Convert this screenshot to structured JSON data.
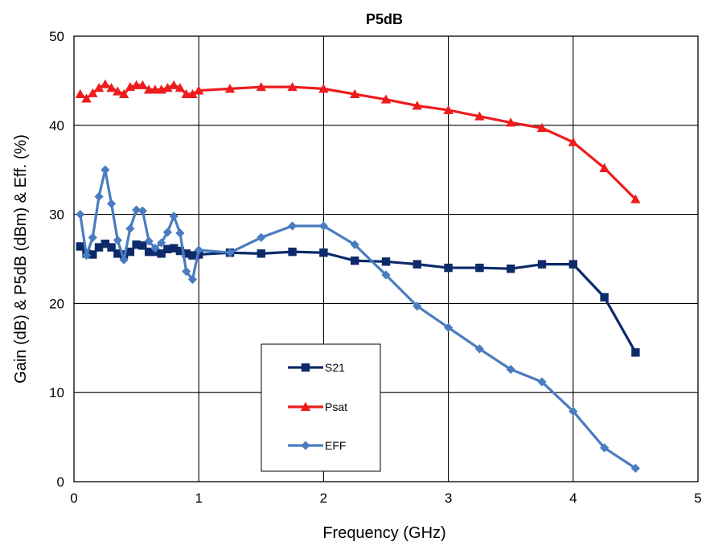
{
  "chart_data": {
    "type": "line",
    "title": "P5dB",
    "xlabel": "Frequency (GHz)",
    "ylabel": "Gain (dB) & P5dB (dBm) & Eff. (%)",
    "xlim": [
      0,
      5
    ],
    "ylim": [
      0,
      50
    ],
    "xticks": [
      0,
      1,
      2,
      3,
      4,
      5
    ],
    "yticks": [
      0,
      10,
      20,
      30,
      40,
      50
    ],
    "grid": true,
    "legend_position": "bottom-center",
    "series": [
      {
        "name": "S21",
        "color": "#0d2a6b",
        "marker": "square",
        "x": [
          0.05,
          0.1,
          0.15,
          0.2,
          0.25,
          0.3,
          0.35,
          0.4,
          0.45,
          0.5,
          0.55,
          0.6,
          0.65,
          0.7,
          0.75,
          0.8,
          0.85,
          0.9,
          0.95,
          1.0,
          1.25,
          1.5,
          1.75,
          2.0,
          2.25,
          2.5,
          2.75,
          3.0,
          3.25,
          3.5,
          3.75,
          4.0,
          4.25,
          4.5
        ],
        "y": [
          26.4,
          25.6,
          25.5,
          26.3,
          26.7,
          26.3,
          25.6,
          25.5,
          25.8,
          26.6,
          26.5,
          25.8,
          25.8,
          25.6,
          26.1,
          26.2,
          25.9,
          25.6,
          25.4,
          25.5,
          25.7,
          25.6,
          25.8,
          25.7,
          24.8,
          24.7,
          24.4,
          24.0,
          24.0,
          23.9,
          24.4,
          24.4,
          20.7,
          14.5
        ]
      },
      {
        "name": "Psat",
        "color": "#ee1c1c",
        "marker": "triangle",
        "x": [
          0.05,
          0.1,
          0.15,
          0.2,
          0.25,
          0.3,
          0.35,
          0.4,
          0.45,
          0.5,
          0.55,
          0.6,
          0.65,
          0.7,
          0.75,
          0.8,
          0.85,
          0.9,
          0.95,
          1.0,
          1.25,
          1.5,
          1.75,
          2.0,
          2.25,
          2.5,
          2.75,
          3.0,
          3.25,
          3.5,
          3.75,
          4.0,
          4.25,
          4.5
        ],
        "y": [
          43.5,
          43.0,
          43.6,
          44.2,
          44.6,
          44.2,
          43.8,
          43.5,
          44.3,
          44.5,
          44.5,
          44.0,
          44.0,
          44.0,
          44.2,
          44.5,
          44.2,
          43.5,
          43.5,
          43.9,
          44.1,
          44.3,
          44.3,
          44.1,
          43.5,
          42.9,
          42.2,
          41.7,
          41.0,
          40.3,
          39.7,
          38.1,
          35.2,
          31.7
        ]
      },
      {
        "name": "EFF",
        "color": "#4a7cbf",
        "marker": "diamond",
        "x": [
          0.05,
          0.1,
          0.15,
          0.2,
          0.25,
          0.3,
          0.35,
          0.4,
          0.45,
          0.5,
          0.55,
          0.6,
          0.65,
          0.7,
          0.75,
          0.8,
          0.85,
          0.9,
          0.95,
          1.0,
          1.25,
          1.5,
          1.75,
          2.0,
          2.25,
          2.5,
          2.75,
          3.0,
          3.25,
          3.5,
          3.75,
          4.0,
          4.25,
          4.5
        ],
        "y": [
          30.0,
          25.4,
          27.4,
          32.0,
          35.0,
          31.2,
          27.1,
          24.9,
          28.4,
          30.5,
          30.4,
          27.0,
          26.2,
          26.8,
          28.0,
          29.8,
          27.9,
          23.6,
          22.7,
          26.0,
          25.7,
          27.4,
          28.7,
          28.7,
          26.6,
          23.2,
          19.7,
          17.3,
          14.9,
          12.6,
          11.2,
          7.9,
          3.8,
          1.5
        ]
      }
    ]
  }
}
